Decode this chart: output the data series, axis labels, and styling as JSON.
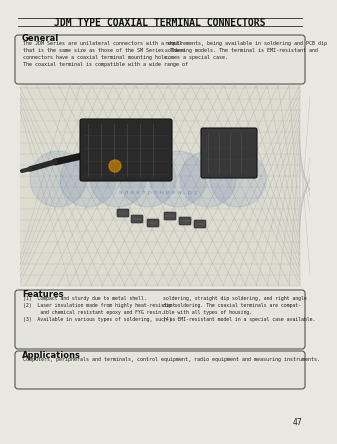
{
  "title": "JDM TYPE COAXIAL TERMINAL CONNECTORS",
  "page_bg": "#e8e8e0",
  "general_heading": "General",
  "general_text_left": "The JDM Series are unilateral connectors with a shell\nthat is the same size as those of the SM Series. These\nconnectors have a coaxial terminal mounting hole.\nThe coaxial terminal is compatible with a wide range of",
  "general_text_right": "requirements, being available in soldering and PCB dip\nsoldering models. The terminal is EMI-resistant and\ncomes a special case.",
  "features_heading": "Features",
  "features_text_left": "(1)  Compact and sturdy due to metal shell.\n(2)  Laser insulation made from highly heat-resistant\n      and chemical resistant epoxy and FYG resin.\n(3)  Available in various types of soldering, such as",
  "features_text_right": "soldering, straight dip soldering, and right angle\ndip soldering. The coaxial terminals are compat-\nible with all types of housing.\n(4)  EMI-resistant model in a special case available.",
  "applications_heading": "Applications",
  "applications_text": "Computers, peripherals and terminals, control equipment, radio equipment and measuring instruments.",
  "page_number": "47",
  "watermark_text": "э л е к т р о н и к а . р у"
}
